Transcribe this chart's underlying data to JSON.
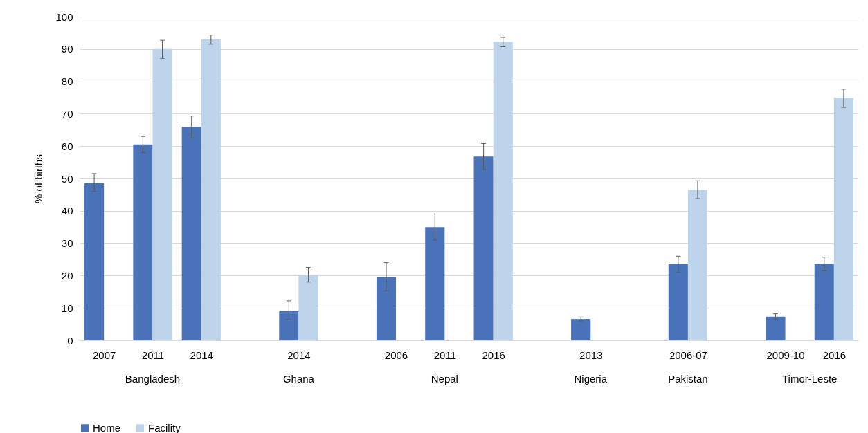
{
  "chart_data": {
    "type": "bar",
    "ylabel": "% of births",
    "categories": [
      "2007",
      "2011",
      "2014",
      null,
      "2014",
      null,
      "2006",
      "2011",
      "2016",
      null,
      "2013",
      null,
      "2006-07",
      null,
      "2009-10",
      "2016"
    ],
    "annotations": [
      "Bangladesh",
      "Ghana",
      "Nepal",
      "Nigeria",
      "Pakistan",
      "Timor-Leste"
    ],
    "series": [
      {
        "name": "Home",
        "color": "#4a72b8",
        "values": [
          48.5,
          60.5,
          66,
          null,
          9,
          null,
          19.5,
          35,
          56.8,
          null,
          6.6,
          null,
          23.5,
          null,
          7.3,
          23.6
        ],
        "errors": [
          [
            46,
            51.5
          ],
          [
            58,
            63
          ],
          [
            62.5,
            69.3
          ],
          null,
          [
            6.5,
            12.2
          ],
          null,
          [
            15.3,
            24
          ],
          [
            31,
            39
          ],
          [
            52.8,
            60.8
          ],
          null,
          [
            6,
            7.2
          ],
          null,
          [
            21,
            26
          ],
          null,
          [
            6.6,
            8.2
          ],
          [
            21.5,
            25.7
          ]
        ]
      },
      {
        "name": "Facility",
        "color": "#bdd4eb",
        "values": [
          null,
          90,
          93,
          null,
          20,
          null,
          null,
          null,
          92.2,
          null,
          null,
          null,
          46.5,
          null,
          null,
          75
        ],
        "errors": [
          null,
          [
            87,
            92.7
          ],
          [
            91.5,
            94.3
          ],
          null,
          [
            18,
            22.5
          ],
          null,
          null,
          null,
          [
            90.7,
            93.6
          ],
          null,
          null,
          null,
          [
            43.8,
            49.3
          ],
          null,
          null,
          [
            72,
            77.6
          ]
        ]
      }
    ],
    "ylim": [
      0,
      100
    ],
    "yticks": [
      0,
      10,
      20,
      30,
      40,
      50,
      60,
      70,
      80,
      90,
      100
    ],
    "grid": "y",
    "legend": "bottom"
  }
}
